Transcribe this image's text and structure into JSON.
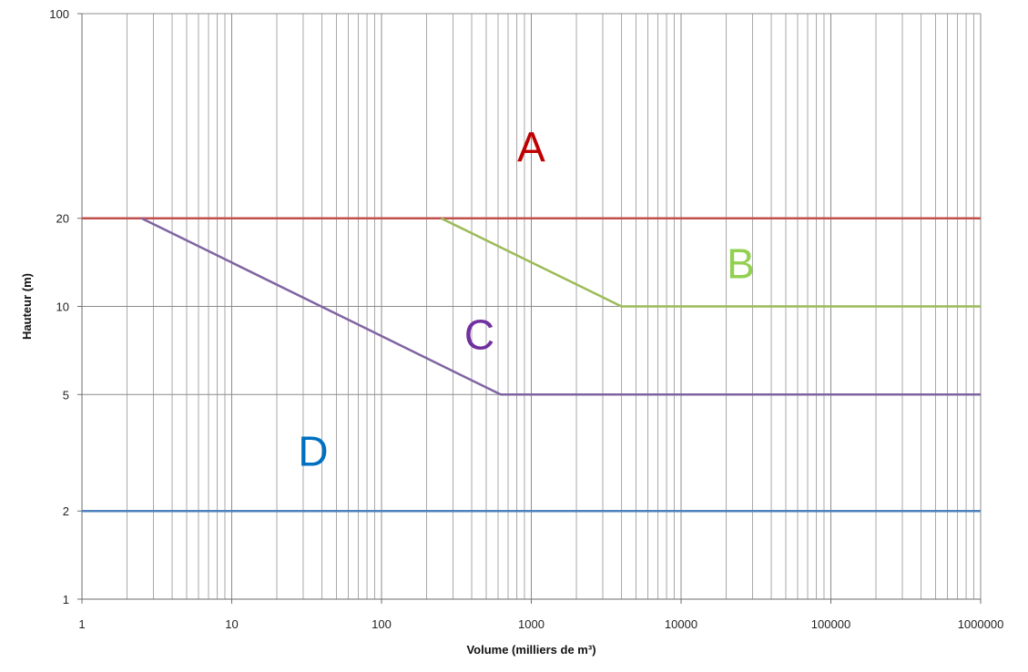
{
  "chart_data": {
    "type": "line",
    "xlabel": "Volume (milliers de m³)",
    "ylabel": "Hauteur (m)",
    "x_scale": "log",
    "y_scale": "log",
    "xlim": [
      1,
      1000000
    ],
    "ylim": [
      1,
      100
    ],
    "grid": true,
    "x_ticks": [
      "1",
      "10",
      "100",
      "1000",
      "10000",
      "100000",
      "1000000"
    ],
    "y_ticks": [
      {
        "value": 1,
        "label": "1"
      },
      {
        "value": 2,
        "label": "2"
      },
      {
        "value": 5,
        "label": "5"
      },
      {
        "value": 10,
        "label": "10"
      },
      {
        "value": 20,
        "label": "20"
      },
      {
        "value": 100,
        "label": "100"
      }
    ],
    "series": [
      {
        "color": "#c0504d",
        "points": [
          [
            1,
            20
          ],
          [
            1000000,
            20
          ]
        ]
      },
      {
        "color": "#9bbb59",
        "points": [
          [
            250,
            20
          ],
          [
            4000,
            10
          ],
          [
            1000000,
            10
          ]
        ]
      },
      {
        "color": "#8064a2",
        "points": [
          [
            2.5,
            20
          ],
          [
            625,
            5
          ],
          [
            1000000,
            5
          ]
        ]
      },
      {
        "color": "#4f81bd",
        "points": [
          [
            1,
            2
          ],
          [
            1000000,
            2
          ]
        ]
      }
    ],
    "annotations": [
      {
        "text": "A",
        "x": 1000,
        "y": 35,
        "color": "#c00000"
      },
      {
        "text": "B",
        "x": 25000,
        "y": 14,
        "color": "#92d050"
      },
      {
        "text": "C",
        "x": 450,
        "y": 8,
        "color": "#7030a0"
      },
      {
        "text": "D",
        "x": 35,
        "y": 3.2,
        "color": "#0070c0"
      }
    ]
  }
}
